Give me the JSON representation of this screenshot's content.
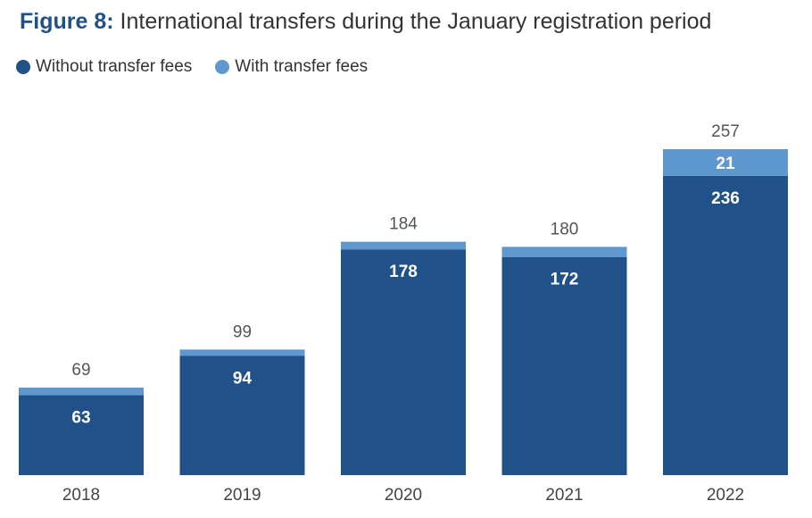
{
  "figure_label": "Figure 8:",
  "figure_title": "International transfers during the January registration period",
  "legend": [
    {
      "label": "Without transfer fees",
      "color": "#215189"
    },
    {
      "label": "With transfer fees",
      "color": "#5f97cf"
    }
  ],
  "chart_data": {
    "type": "bar",
    "stacked": true,
    "categories": [
      "2018",
      "2019",
      "2020",
      "2021",
      "2022"
    ],
    "series": [
      {
        "name": "Without transfer fees",
        "values": [
          63,
          94,
          178,
          172,
          236
        ],
        "color": "#215189"
      },
      {
        "name": "With transfer fees",
        "values": [
          6,
          5,
          6,
          8,
          21
        ],
        "color": "#5f97cf"
      }
    ],
    "totals": [
      69,
      99,
      184,
      180,
      257
    ],
    "segment_labels_shown": {
      "Without transfer fees": [
        true,
        true,
        true,
        true,
        true
      ],
      "With transfer fees": [
        false,
        false,
        false,
        false,
        true
      ]
    },
    "ylim": [
      0,
      257
    ],
    "grid": false,
    "legend_position": "top-left"
  }
}
